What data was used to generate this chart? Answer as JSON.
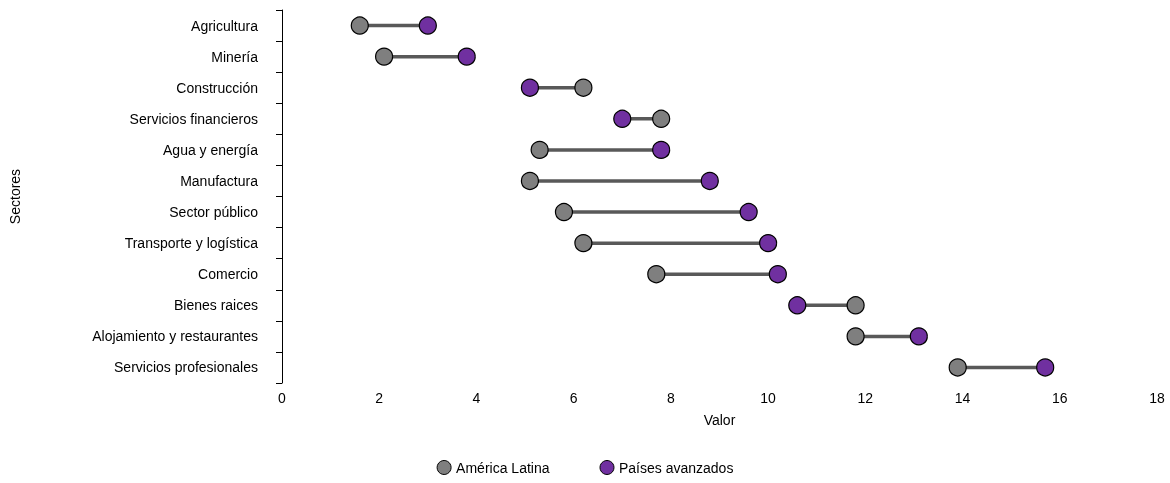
{
  "chart_data": {
    "type": "scatter",
    "orientation": "horizontal",
    "xlabel": "Valor",
    "ylabel": "Sectores",
    "categories": [
      "Agricultura",
      "Minería",
      "Construcción",
      "Servicios financieros",
      "Agua y energía",
      "Manufactura",
      "Sector público",
      "Transporte y logística",
      "Comercio",
      "Bienes raices",
      "Alojamiento y restaurantes",
      "Servicios profesionales"
    ],
    "xlim": [
      0,
      18
    ],
    "xticks": [
      0,
      2,
      4,
      6,
      8,
      10,
      12,
      14,
      16,
      18
    ],
    "legend": "bottom",
    "marker": "circle",
    "grid": false,
    "series": [
      {
        "name": "América Latina",
        "color": "#7f7f7f",
        "values": [
          1.6,
          2.1,
          6.2,
          7.8,
          5.3,
          5.1,
          5.8,
          6.2,
          7.7,
          11.8,
          11.8,
          13.9
        ]
      },
      {
        "name": "Países avanzados",
        "color": "#7030a0",
        "values": [
          3.0,
          3.8,
          5.1,
          7.0,
          7.8,
          8.8,
          9.6,
          10.0,
          10.2,
          10.6,
          13.1,
          15.7
        ]
      }
    ]
  }
}
